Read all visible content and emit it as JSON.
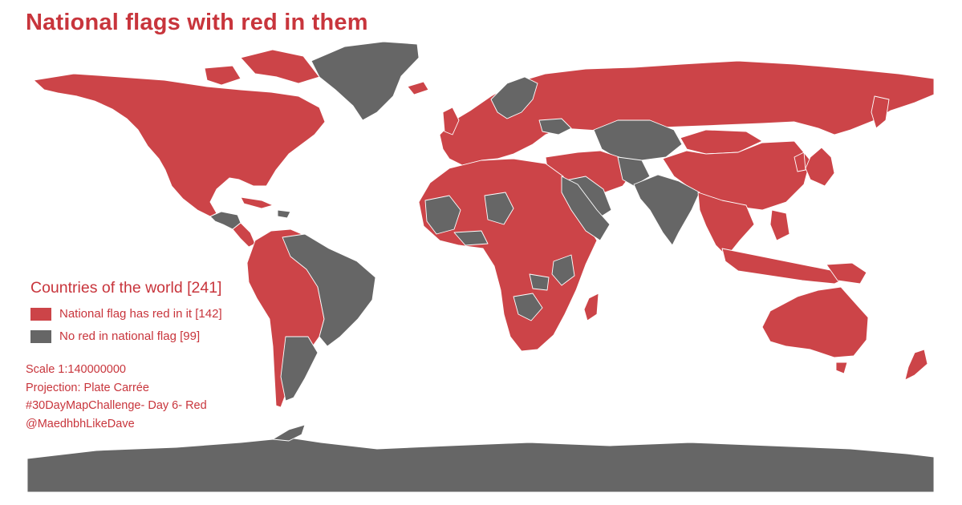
{
  "title": "National flags with red in them",
  "colors": {
    "red": "#cc4448",
    "gray": "#666666",
    "text_red": "#c8353c",
    "background": "#ffffff"
  },
  "legend": {
    "title": "Countries of the world [241]",
    "items": [
      {
        "label": "National flag has red in it [142]",
        "color": "red"
      },
      {
        "label": "No red in national flag [99]",
        "color": "gray"
      }
    ]
  },
  "credits": {
    "scale": "Scale 1:140000000",
    "projection": "Projection: Plate Carrée",
    "hashtag": "#30DayMapChallenge- Day 6- Red",
    "author": "@MaedhbhLikeDave"
  }
}
